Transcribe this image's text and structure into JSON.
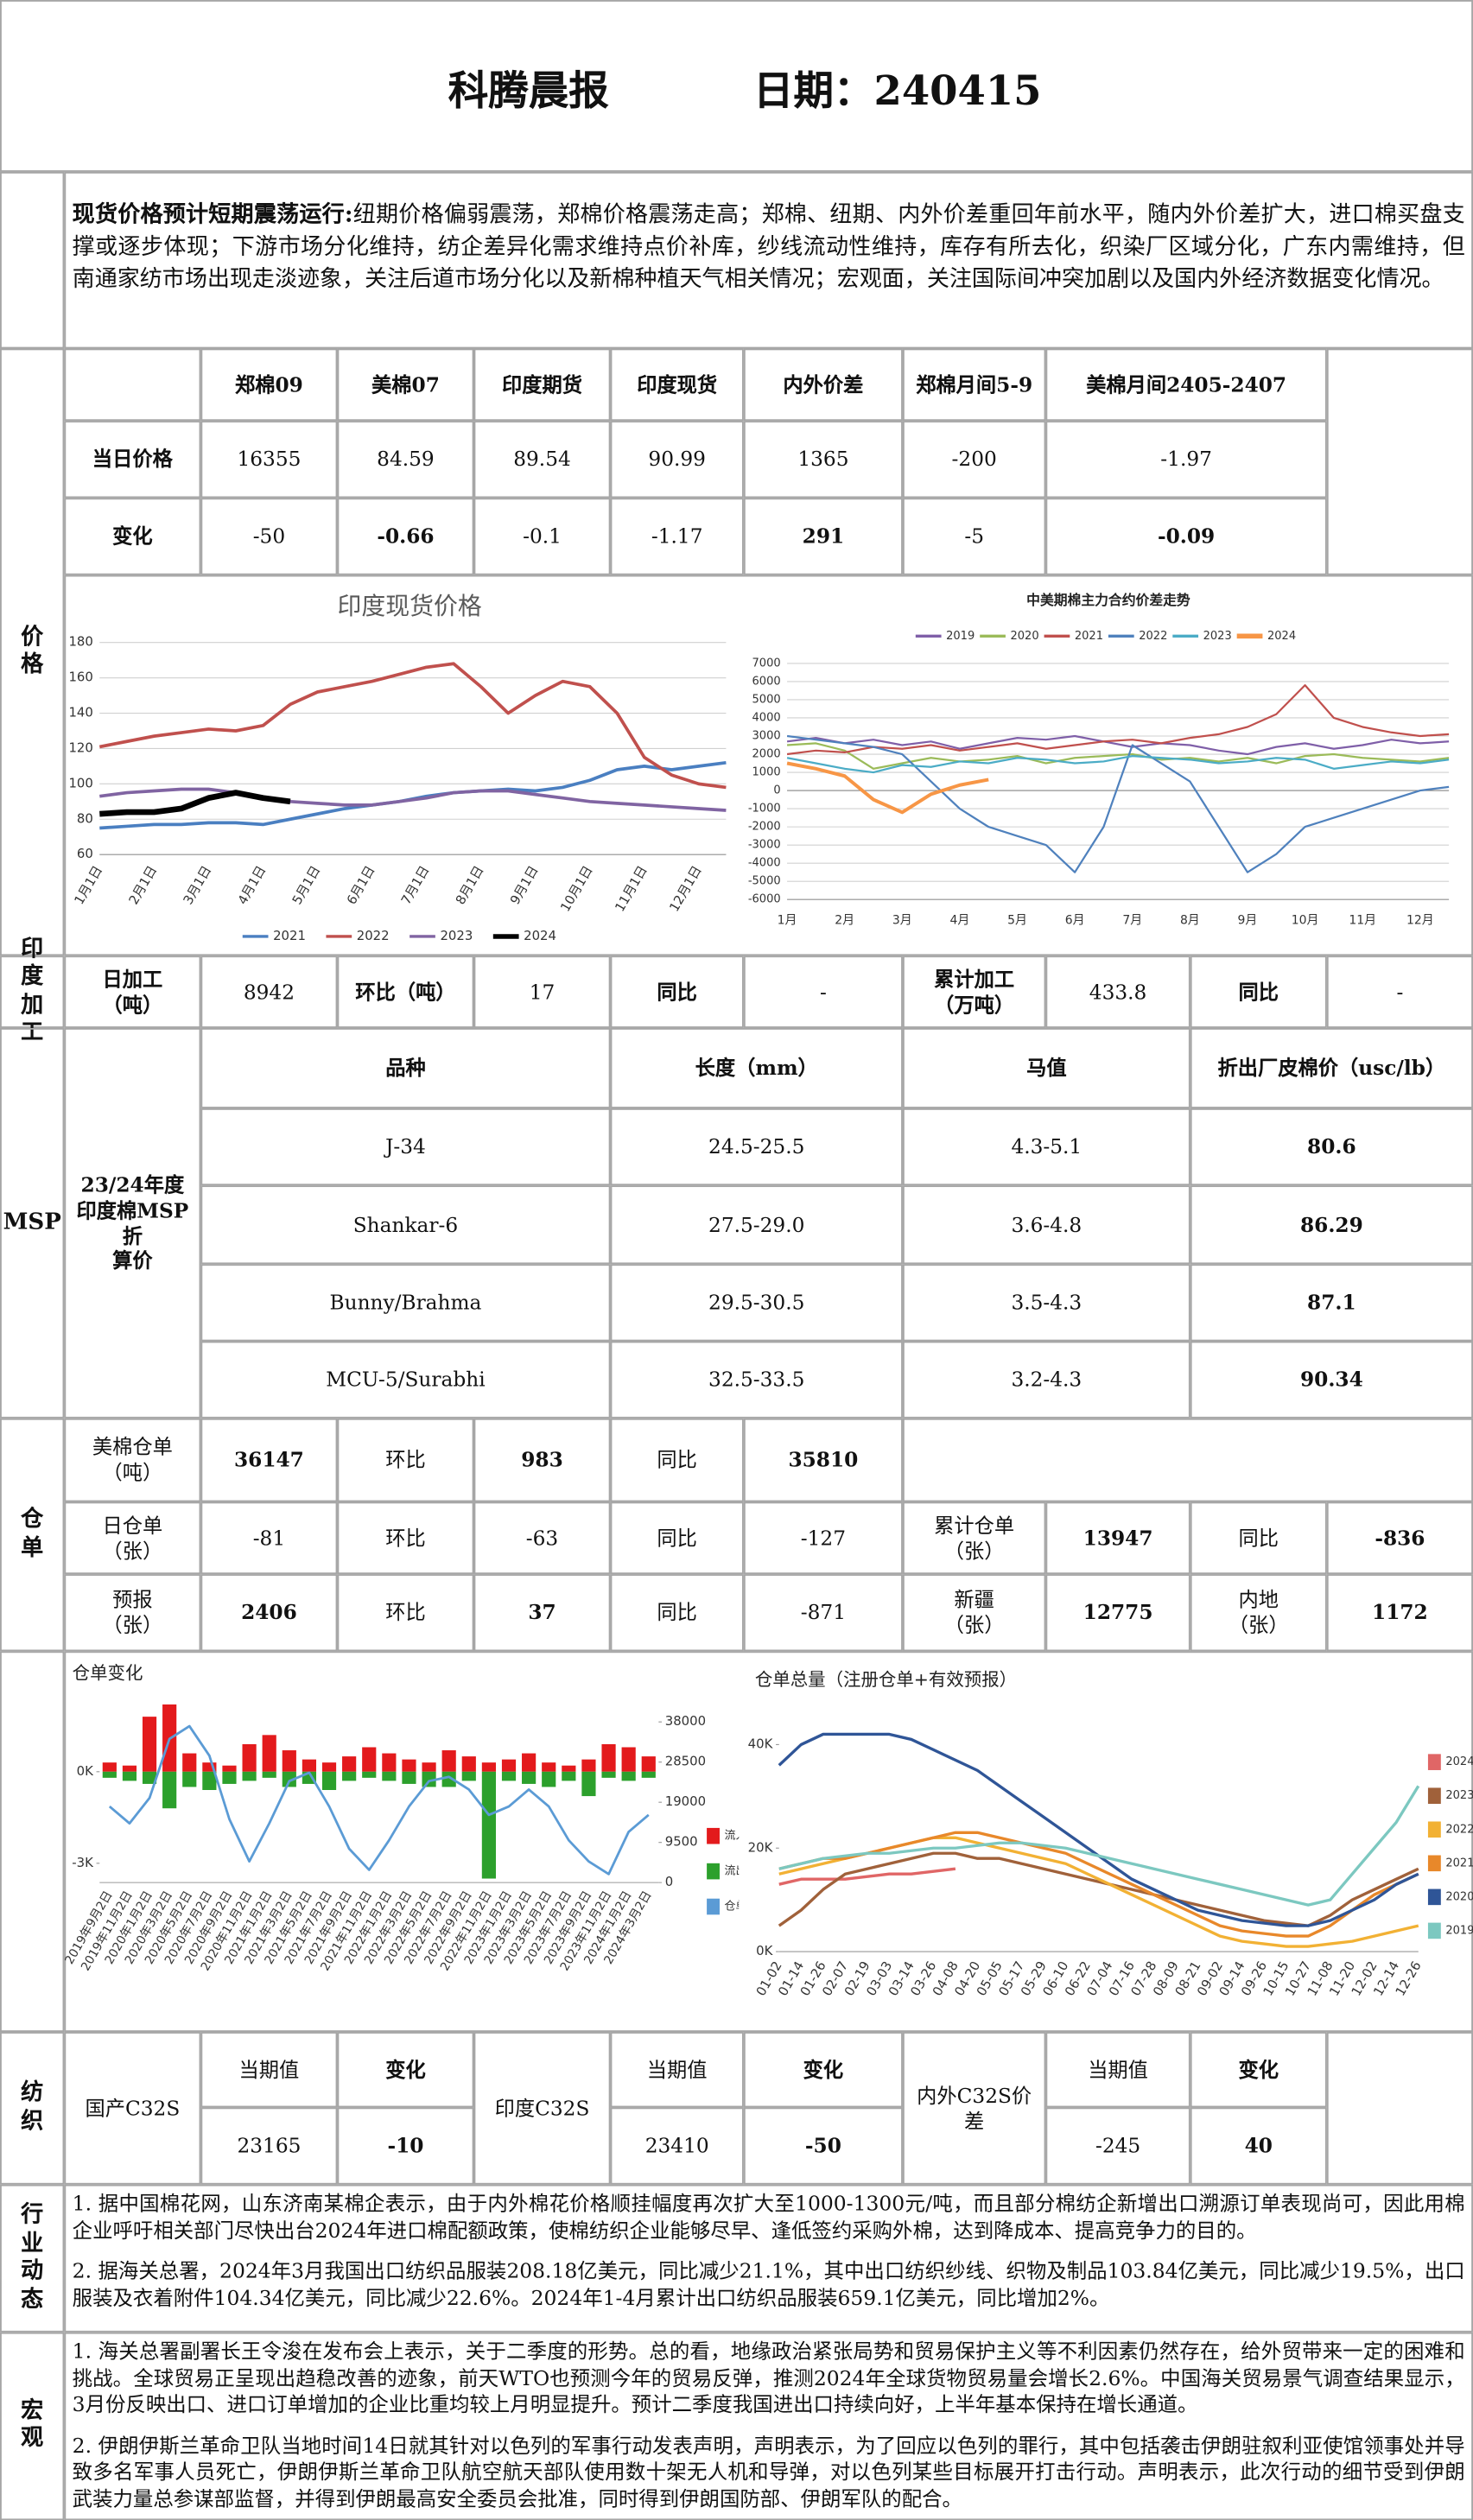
{
  "header": {
    "title": "科腾晨报",
    "date": "日期：240415"
  },
  "summary": {
    "lead": "现货价格预计短期震荡运行:",
    "text": "纽期价格偏弱震荡，郑棉价格震荡走高；郑棉、纽期、内外价差重回年前水平，随内外价差扩大，进口棉买盘支撑或逐步体现；下游市场分化维持，纺企差异化需求维持点价补库，纱线流动性维持，库存有所去化，织染厂区域分化，广东内需维持，但南通家纺市场出现走淡迹象，关注后道市场分化以及新棉种植天气相关情况；宏观面，关注国际间冲突加剧以及国内外经济数据变化情况。"
  },
  "price": {
    "label": "价格",
    "columns": [
      "郑棉09",
      "美棉07",
      "印度期货",
      "印度现货",
      "内外价差",
      "郑棉月间5-9",
      "美棉月间2405-2407"
    ],
    "rows": [
      {
        "label": "当日价格",
        "values": [
          "16355",
          "84.59",
          "89.54",
          "90.99",
          "1365",
          "-200",
          "-1.97"
        ]
      },
      {
        "label": "变化",
        "values": [
          "-50",
          "-0.66",
          "-0.1",
          "-1.17",
          "291",
          "-5",
          "-0.09"
        ]
      }
    ]
  },
  "india_processing": {
    "label": "印度加工",
    "cells": [
      "日加工\n（吨）",
      "8942",
      "环比（吨）",
      "17",
      "同比",
      "-",
      "累计加工\n（万吨）",
      "433.8",
      "同比",
      "-"
    ]
  },
  "msp": {
    "label": "MSP",
    "name": "23/24年度\n印度棉MSP折\n算价",
    "header": [
      "品种",
      "长度（mm）",
      "马值",
      "折出厂皮棉价（usc/lb）"
    ],
    "rows": [
      [
        "J-34",
        "24.5-25.5",
        "4.3-5.1",
        "80.6"
      ],
      [
        "Shankar-6",
        "27.5-29.0",
        "3.6-4.8",
        "86.29"
      ],
      [
        "Bunny/Brahma",
        "29.5-30.5",
        "3.5-4.3",
        "87.1"
      ],
      [
        "MCU-5/Surabhi",
        "32.5-33.5",
        "3.2-4.3",
        "90.34"
      ]
    ]
  },
  "warehouse": {
    "label": "仓单",
    "rows": [
      [
        "美棉仓单\n（吨）",
        "36147",
        "环比",
        "983",
        "同比",
        "35810"
      ],
      [
        "日仓单\n（张）",
        "-81",
        "环比",
        "-63",
        "同比",
        "-127",
        "累计仓单\n（张）",
        "13947",
        "同比",
        "-836"
      ],
      [
        "预报\n（张）",
        "2406",
        "环比",
        "37",
        "同比",
        "-871",
        "新疆\n（张）",
        "12775",
        "内地\n（张）",
        "1172"
      ]
    ]
  },
  "textile": {
    "label": "纺织",
    "groups": [
      {
        "name": "国产C32S",
        "headers": [
          "当期值",
          "变化"
        ],
        "values": [
          "23165",
          "-10"
        ]
      },
      {
        "name": "印度C32S",
        "headers": [
          "当期值",
          "变化"
        ],
        "values": [
          "23410",
          "-50"
        ]
      },
      {
        "name": "内外C32S价差",
        "headers": [
          "当期值",
          "变化"
        ],
        "values": [
          "-245",
          "40"
        ]
      }
    ]
  },
  "industry": {
    "label": "行业动态",
    "paragraphs": [
      "1. 据中国棉花网，山东济南某棉企表示，由于内外棉花价格顺挂幅度再次扩大至1000-1300元/吨，而且部分棉纺企新增出口溯源订单表现尚可，因此用棉企业呼吁相关部门尽快出台2024年进口棉配额政策，使棉纺织企业能够尽早、逢低签约采购外棉，达到降成本、提高竞争力的目的。",
      "2. 据海关总署，2024年3月我国出口纺织品服装208.18亿美元，同比减少21.1%，其中出口纺织纱线、织物及制品103.84亿美元，同比减少19.5%，出口服装及衣着附件104.34亿美元，同比减少22.6%。2024年1-4月累计出口纺织品服装659.1亿美元，同比增加2%。"
    ]
  },
  "macro": {
    "label": "宏观",
    "paragraphs": [
      "1. 海关总署副署长王令浚在发布会上表示，关于二季度的形势。总的看，地缘政治紧张局势和贸易保护主义等不利因素仍然存在，给外贸带来一定的困难和挑战。全球贸易正呈现出趋稳改善的迹象，前天WTO也预测今年的贸易反弹，推测2024年全球货物贸易量会增长2.6%。中国海关贸易景气调查结果显示，3月份反映出口、进口订单增加的企业比重均较上月明显提升。预计二季度我国进出口持续向好，上半年基本保持在增长通道。",
      "2. 伊朗伊斯兰革命卫队当地时间14日就其针对以色列的军事行动发表声明，声明表示，为了回应以色列的罪行，其中包括袭击伊朗驻叙利亚使馆领事处并导致多名军事人员死亡，伊朗伊斯兰革命卫队航空航天部队使用数十架无人机和导弹，对以色列某些目标展开打击行动。声明表示，此次行动的细节受到伊朗武装力量总参谋部监督，并得到伊朗最高安全委员会批准，同时得到伊朗国防部、伊朗军队的配合。"
    ]
  },
  "chart_data": [
    {
      "type": "line",
      "title": "印度现货价格",
      "legend": "bottom",
      "grid": true,
      "categories": [
        "1月1日",
        null,
        "2月1日",
        null,
        "3月1日",
        null,
        "4月1日",
        null,
        "5月1日",
        null,
        "6月1日",
        null,
        "7月1日",
        null,
        "8月1日",
        null,
        "9月1日",
        null,
        "10月1日",
        null,
        "11月1日",
        null,
        "12月1日",
        null
      ],
      "ylim": [
        60,
        180
      ],
      "yticks": [
        60,
        80,
        100,
        120,
        140,
        160,
        180
      ],
      "series": [
        {
          "name": "2021",
          "color": "#4a7fc1",
          "values": [
            75,
            76,
            77,
            77,
            78,
            78,
            77,
            80,
            83,
            86,
            88,
            90,
            93,
            95,
            96,
            97,
            96,
            98,
            102,
            108,
            110,
            108,
            110,
            112
          ]
        },
        {
          "name": "2022",
          "color": "#c0504d",
          "values": [
            121,
            124,
            127,
            129,
            131,
            130,
            133,
            145,
            152,
            155,
            158,
            162,
            166,
            168,
            155,
            140,
            150,
            158,
            155,
            140,
            115,
            105,
            100,
            98
          ]
        },
        {
          "name": "2023",
          "color": "#8064a2",
          "values": [
            93,
            95,
            96,
            97,
            97,
            95,
            92,
            90,
            89,
            88,
            88,
            90,
            92,
            95,
            96,
            96,
            94,
            92,
            90,
            89,
            88,
            87,
            86,
            85
          ]
        },
        {
          "name": "2024",
          "color": "#000000",
          "values": [
            83,
            84,
            84,
            86,
            92,
            95,
            92,
            90,
            null,
            null,
            null,
            null,
            null,
            null,
            null,
            null,
            null,
            null,
            null,
            null,
            null,
            null,
            null,
            null
          ]
        }
      ]
    },
    {
      "type": "line",
      "title": "中美期棉主力合约价差走势",
      "legend": "top",
      "grid": true,
      "categories": [
        "1月",
        null,
        "2月",
        null,
        "3月",
        null,
        "4月",
        null,
        "5月",
        null,
        "6月",
        null,
        "7月",
        null,
        "8月",
        null,
        "9月",
        null,
        "10月",
        null,
        "11月",
        null,
        "12月",
        null
      ],
      "ylim": [
        -6000,
        7000
      ],
      "yticks": [
        -6000,
        -5000,
        -4000,
        -3000,
        -2000,
        -1000,
        0,
        1000,
        2000,
        3000,
        4000,
        5000,
        6000,
        7000
      ],
      "series": [
        {
          "name": "2019",
          "color": "#7f5fa8",
          "values": [
            2700,
            2900,
            2600,
            2800,
            2500,
            2700,
            2300,
            2600,
            2900,
            2800,
            3000,
            2700,
            2400,
            2600,
            2500,
            2200,
            2000,
            2400,
            2600,
            2300,
            2500,
            2800,
            2600,
            2700
          ]
        },
        {
          "name": "2020",
          "color": "#9bbb59",
          "values": [
            2500,
            2600,
            2200,
            1200,
            1500,
            1800,
            1600,
            1700,
            1900,
            1500,
            1800,
            1900,
            2000,
            1700,
            1800,
            1600,
            1800,
            1500,
            1900,
            2000,
            1800,
            1700,
            1600,
            1800
          ]
        },
        {
          "name": "2021",
          "color": "#c0504d",
          "values": [
            2000,
            2200,
            2100,
            2400,
            2300,
            2500,
            2200,
            2400,
            2600,
            2300,
            2500,
            2700,
            2800,
            2600,
            2900,
            3100,
            3500,
            4200,
            5800,
            4000,
            3500,
            3200,
            3000,
            3100
          ]
        },
        {
          "name": "2022",
          "color": "#4f81bd",
          "values": [
            3000,
            2800,
            2600,
            2400,
            2000,
            500,
            -1000,
            -2000,
            -2500,
            -3000,
            -4500,
            -2000,
            2500,
            1500,
            500,
            -2000,
            -4500,
            -3500,
            -2000,
            -1500,
            -1000,
            -500,
            0,
            200
          ]
        },
        {
          "name": "2023",
          "color": "#4bacc6",
          "values": [
            1800,
            1500,
            1200,
            1000,
            1400,
            1300,
            1600,
            1500,
            1800,
            1700,
            1500,
            1600,
            1900,
            1800,
            1700,
            1500,
            1600,
            1800,
            1700,
            1200,
            1400,
            1600,
            1500,
            1700
          ]
        },
        {
          "name": "2024",
          "color": "#f79646",
          "values": [
            1500,
            1200,
            800,
            -500,
            -1200,
            -200,
            300,
            600,
            null,
            null,
            null,
            null,
            null,
            null,
            null,
            null,
            null,
            null,
            null,
            null,
            null,
            null,
            null,
            null
          ]
        }
      ]
    },
    {
      "type": "bar",
      "title": "仓单变化",
      "legend": "right",
      "grid": false,
      "categories": [
        "2019年9月2日",
        "2019年11月2日",
        "2020年1月2日",
        "2020年3月2日",
        "2020年5月2日",
        "2020年7月2日",
        "2020年9月2日",
        "2020年11月2日",
        "2021年1月2日",
        "2021年3月2日",
        "2021年5月2日",
        "2021年7月2日",
        "2021年9月2日",
        "2021年11月2日",
        "2022年1月2日",
        "2022年3月2日",
        "2022年5月2日",
        "2022年7月2日",
        "2022年9月2日",
        "2022年11月2日",
        "2023年1月2日",
        "2023年3月2日",
        "2023年5月2日",
        "2023年7月2日",
        "2023年9月2日",
        "2023年11月2日",
        "2024年1月2日",
        "2024年3月2日"
      ],
      "ylim": [
        -3630,
        2260
      ],
      "yticks": [
        {
          "value": 0,
          "label": "0K"
        },
        {
          "value": -3000,
          "label": "-3K"
        }
      ],
      "y2lim": [
        0,
        42560
      ],
      "y2ticks": [
        0,
        9500,
        19000,
        28500,
        38000
      ],
      "series": [
        {
          "name": "流入",
          "color": "#e31a1c",
          "values": [
            300,
            200,
            1800,
            2200,
            600,
            300,
            200,
            900,
            1200,
            700,
            400,
            300,
            500,
            800,
            600,
            400,
            300,
            700,
            500,
            300,
            400,
            600,
            300,
            200,
            400,
            900,
            800,
            500
          ]
        },
        {
          "name": "流出",
          "color": "#2ca02c",
          "values": [
            -200,
            -300,
            -400,
            -1200,
            -500,
            -600,
            -400,
            -300,
            -200,
            -500,
            -400,
            -600,
            -300,
            -200,
            -300,
            -400,
            -500,
            -500,
            -300,
            -3500,
            -300,
            -400,
            -500,
            -300,
            -800,
            -200,
            -300,
            -200
          ]
        },
        {
          "name": "仓单",
          "color": "#5b9bd5",
          "type": "line",
          "axis": "y2",
          "values": [
            18000,
            14000,
            20000,
            34000,
            37000,
            30000,
            15000,
            5000,
            14000,
            24000,
            26000,
            18000,
            8000,
            3000,
            10000,
            18000,
            24000,
            25000,
            22000,
            16000,
            18000,
            22000,
            18000,
            10000,
            5000,
            2000,
            12000,
            16000
          ]
        }
      ]
    },
    {
      "type": "line",
      "title": "仓单总量（注册仓单+有效预报）",
      "legend": "right",
      "grid": false,
      "categories": [
        "01-02",
        "01-14",
        "01-26",
        "02-07",
        "02-19",
        "03-03",
        "03-14",
        "03-26",
        "04-08",
        "04-20",
        "05-05",
        "05-17",
        "05-29",
        "06-10",
        "06-22",
        "07-04",
        "07-16",
        "07-28",
        "08-09",
        "08-21",
        "09-02",
        "09-14",
        "09-26",
        "10-15",
        "10-27",
        "11-08",
        "11-20",
        "12-02",
        "12-14",
        "12-26"
      ],
      "ylim": [
        0,
        45000
      ],
      "yticks": [
        {
          "value": 0,
          "label": "0K"
        },
        {
          "value": 20000,
          "label": "20K"
        },
        {
          "value": 40000,
          "label": "40K"
        }
      ],
      "series": [
        {
          "name": "2024",
          "color": "#e06666",
          "values": [
            13000,
            14000,
            14000,
            14000,
            14500,
            15000,
            15000,
            15500,
            16000,
            null,
            null,
            null,
            null,
            null,
            null,
            null,
            null,
            null,
            null,
            null,
            null,
            null,
            null,
            null,
            null,
            null,
            null,
            null,
            null,
            null
          ]
        },
        {
          "name": "2023",
          "color": "#a0613a",
          "values": [
            5000,
            8000,
            12000,
            15000,
            16000,
            17000,
            18000,
            19000,
            19000,
            18000,
            18000,
            17000,
            16000,
            15000,
            14000,
            13000,
            12000,
            11000,
            10000,
            9000,
            8000,
            7000,
            6000,
            5500,
            5000,
            7000,
            10000,
            12000,
            14000,
            16000
          ]
        },
        {
          "name": "2022",
          "color": "#f2b134",
          "values": [
            15000,
            16000,
            17000,
            18000,
            19000,
            20000,
            21000,
            22000,
            22000,
            21000,
            20000,
            19000,
            18000,
            17000,
            15000,
            13000,
            11000,
            9000,
            7000,
            5000,
            3000,
            2000,
            1500,
            1000,
            1000,
            1500,
            2000,
            3000,
            4000,
            5000
          ]
        },
        {
          "name": "2021",
          "color": "#e8882a",
          "values": [
            16000,
            17000,
            18000,
            18000,
            19000,
            20000,
            21000,
            22000,
            23000,
            23000,
            22000,
            21000,
            20000,
            19000,
            17000,
            15000,
            13000,
            11000,
            9000,
            7000,
            5000,
            4000,
            3500,
            3000,
            3000,
            5000,
            8000,
            11000,
            13000,
            15000
          ]
        },
        {
          "name": "2020",
          "color": "#2f5597",
          "values": [
            36000,
            40000,
            42000,
            42000,
            42000,
            42000,
            41000,
            39000,
            37000,
            35000,
            32000,
            29000,
            26000,
            23000,
            20000,
            17000,
            14000,
            12000,
            10000,
            8000,
            7000,
            6000,
            5500,
            5000,
            5000,
            6000,
            8000,
            10000,
            13000,
            15000
          ]
        },
        {
          "name": "2019",
          "color": "#7cc8c0",
          "values": [
            16000,
            17000,
            18000,
            18500,
            19000,
            19000,
            19500,
            20000,
            20000,
            20500,
            21000,
            21000,
            20500,
            20000,
            19000,
            18000,
            17000,
            16000,
            15000,
            14000,
            13000,
            12000,
            11000,
            10000,
            9000,
            10000,
            15000,
            20000,
            25000,
            32000
          ]
        }
      ]
    }
  ]
}
